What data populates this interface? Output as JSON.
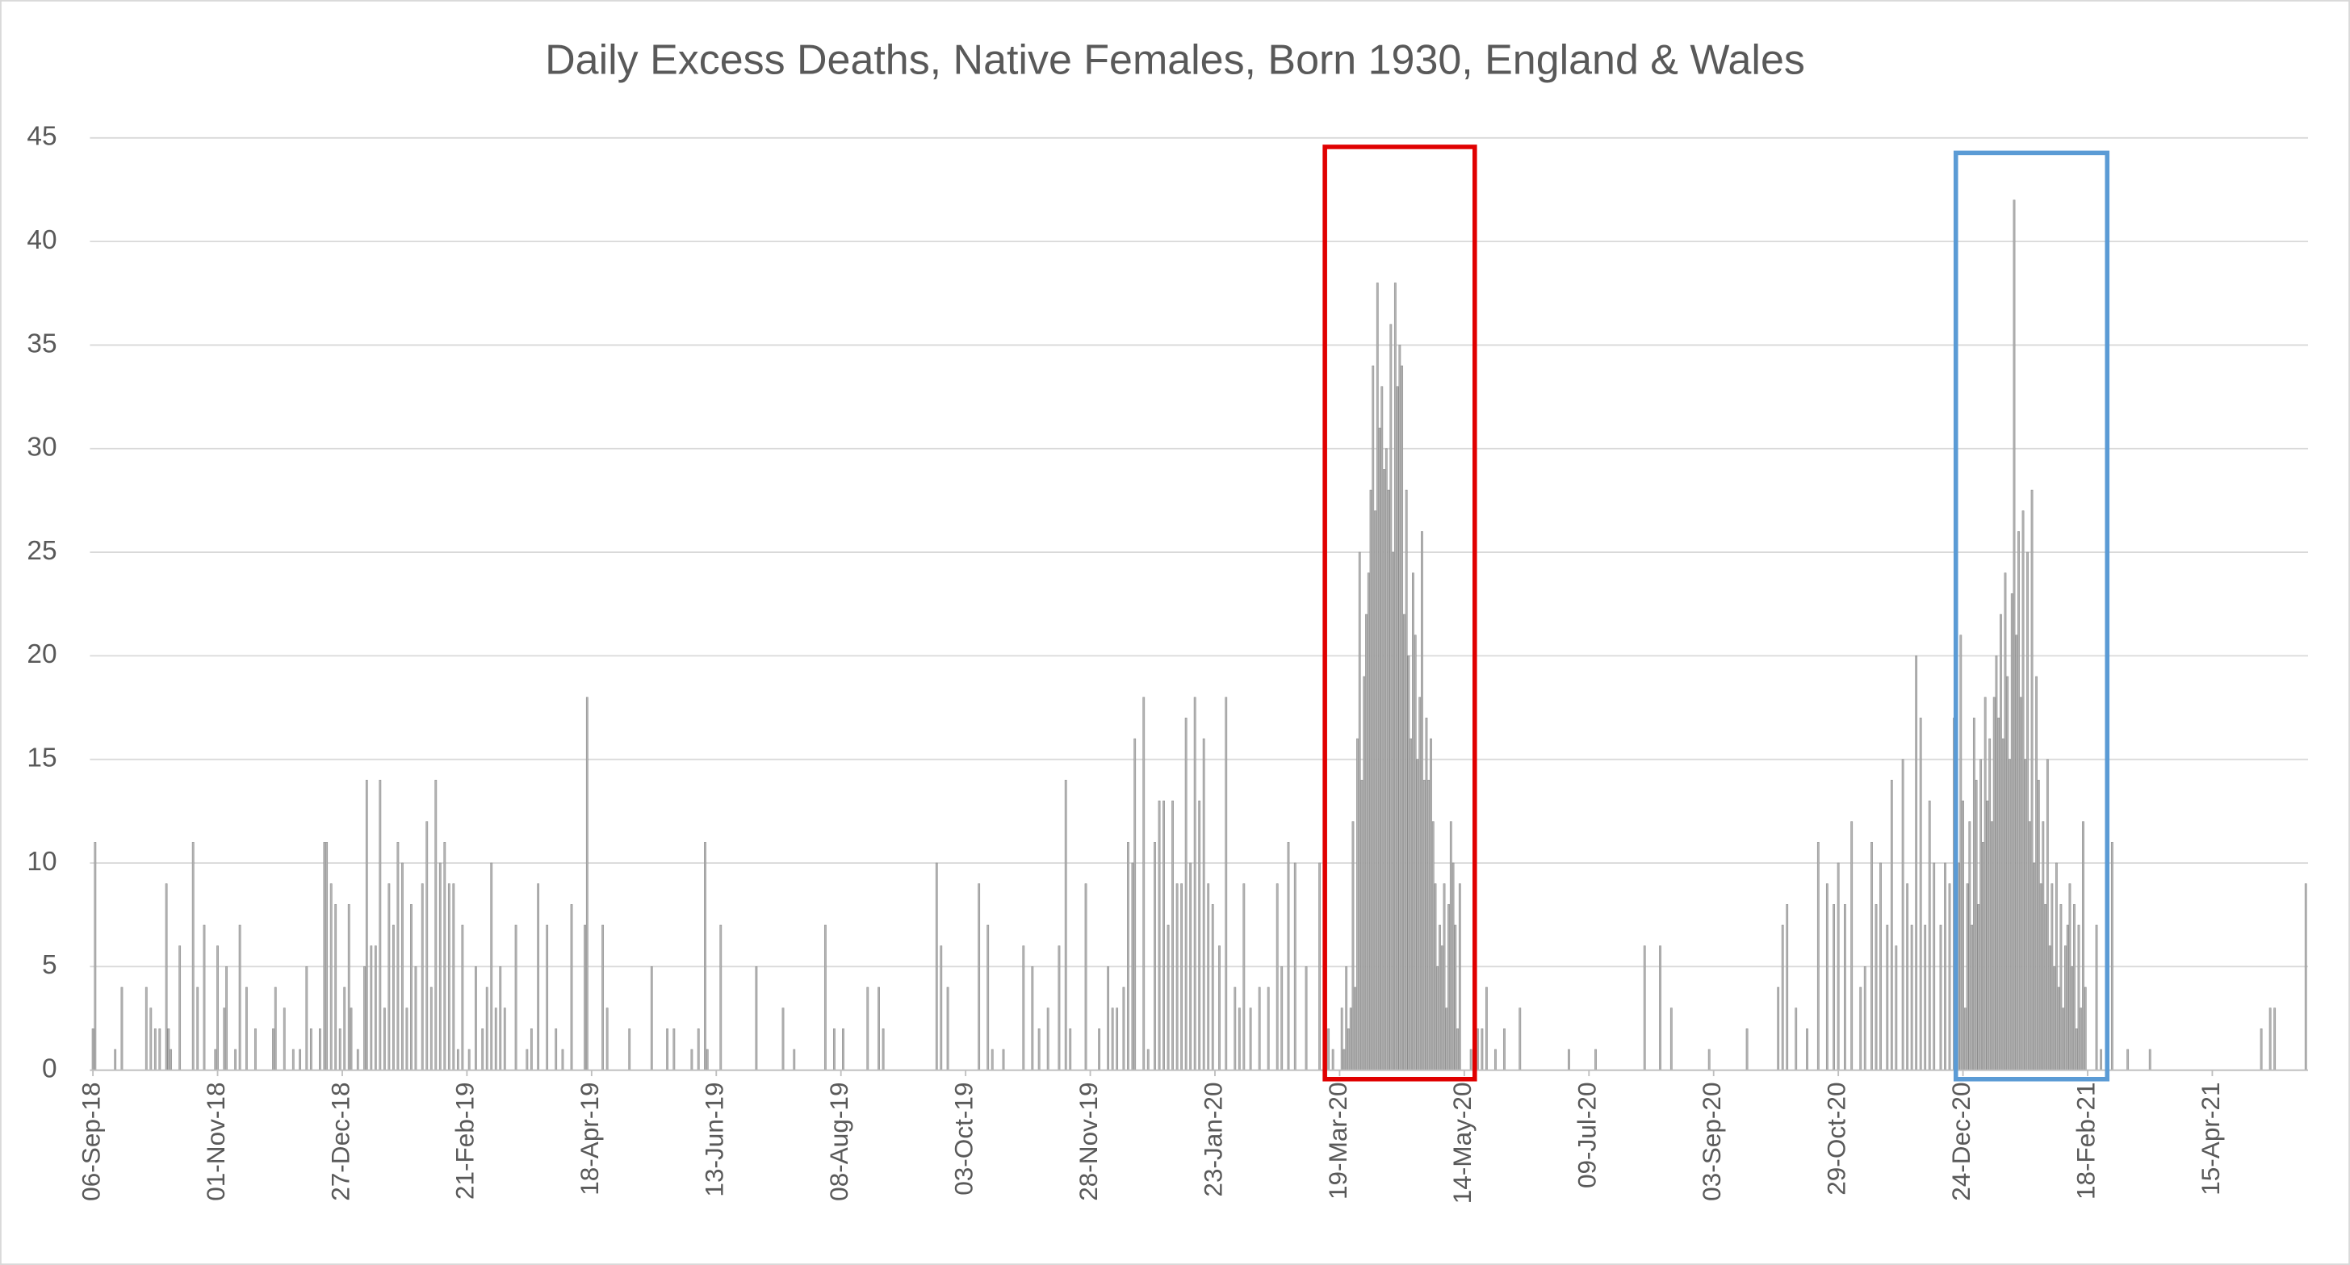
{
  "chart_data": {
    "type": "bar",
    "title": "Daily Excess Deaths, Native Females, Born 1930, England & Wales",
    "color": "#b3b3b3",
    "grid": true,
    "ylim": [
      0,
      45
    ],
    "yticks": [
      0,
      5,
      10,
      15,
      20,
      25,
      30,
      35,
      40,
      45
    ],
    "xlim": [
      "2018-09-06",
      "2021-05-28"
    ],
    "xticks": [
      {
        "value": "2018-09-06",
        "label": "06-Sep-18"
      },
      {
        "value": "2018-11-01",
        "label": "01-Nov-18"
      },
      {
        "value": "2018-12-27",
        "label": "27-Dec-18"
      },
      {
        "value": "2019-02-21",
        "label": "21-Feb-19"
      },
      {
        "value": "2019-04-18",
        "label": "18-Apr-19"
      },
      {
        "value": "2019-06-13",
        "label": "13-Jun-19"
      },
      {
        "value": "2019-08-08",
        "label": "08-Aug-19"
      },
      {
        "value": "2019-10-03",
        "label": "03-Oct-19"
      },
      {
        "value": "2019-11-28",
        "label": "28-Nov-19"
      },
      {
        "value": "2020-01-23",
        "label": "23-Jan-20"
      },
      {
        "value": "2020-03-19",
        "label": "19-Mar-20"
      },
      {
        "value": "2020-05-14",
        "label": "14-May-20"
      },
      {
        "value": "2020-07-09",
        "label": "09-Jul-20"
      },
      {
        "value": "2020-09-03",
        "label": "03-Sep-20"
      },
      {
        "value": "2020-10-29",
        "label": "29-Oct-20"
      },
      {
        "value": "2020-12-24",
        "label": "24-Dec-20"
      },
      {
        "value": "2021-02-18",
        "label": "18-Feb-21"
      },
      {
        "value": "2021-04-15",
        "label": "15-Apr-21"
      }
    ],
    "x": [
      "2018-09-06",
      "2018-09-07",
      "2018-09-16",
      "2018-09-19",
      "2018-09-30",
      "2018-10-02",
      "2018-10-04",
      "2018-10-06",
      "2018-10-09",
      "2018-10-10",
      "2018-10-11",
      "2018-10-15",
      "2018-10-21",
      "2018-10-23",
      "2018-10-26",
      "2018-10-31",
      "2018-11-01",
      "2018-11-04",
      "2018-11-05",
      "2018-11-09",
      "2018-11-11",
      "2018-11-14",
      "2018-11-18",
      "2018-11-26",
      "2018-11-27",
      "2018-12-01",
      "2018-12-05",
      "2018-12-08",
      "2018-12-11",
      "2018-12-13",
      "2018-12-17",
      "2018-12-19",
      "2018-12-20",
      "2018-12-22",
      "2018-12-24",
      "2018-12-26",
      "2018-12-28",
      "2018-12-30",
      "2018-12-31",
      "2019-01-03",
      "2019-01-06",
      "2019-01-07",
      "2019-01-09",
      "2019-01-11",
      "2019-01-13",
      "2019-01-15",
      "2019-01-17",
      "2019-01-19",
      "2019-01-21",
      "2019-01-23",
      "2019-01-25",
      "2019-01-27",
      "2019-01-29",
      "2019-02-01",
      "2019-02-03",
      "2019-02-05",
      "2019-02-07",
      "2019-02-09",
      "2019-02-11",
      "2019-02-13",
      "2019-02-15",
      "2019-02-17",
      "2019-02-19",
      "2019-02-22",
      "2019-02-25",
      "2019-02-28",
      "2019-03-02",
      "2019-03-04",
      "2019-03-06",
      "2019-03-08",
      "2019-03-10",
      "2019-03-15",
      "2019-03-20",
      "2019-03-22",
      "2019-03-25",
      "2019-03-29",
      "2019-04-02",
      "2019-04-05",
      "2019-04-09",
      "2019-04-15",
      "2019-04-16",
      "2019-04-23",
      "2019-04-25",
      "2019-05-05",
      "2019-05-15",
      "2019-05-22",
      "2019-05-25",
      "2019-06-02",
      "2019-06-05",
      "2019-06-08",
      "2019-06-09",
      "2019-06-15",
      "2019-07-01",
      "2019-07-13",
      "2019-07-18",
      "2019-08-01",
      "2019-08-05",
      "2019-08-09",
      "2019-08-20",
      "2019-08-25",
      "2019-08-27",
      "2019-09-20",
      "2019-09-22",
      "2019-09-25",
      "2019-10-09",
      "2019-10-13",
      "2019-10-15",
      "2019-10-20",
      "2019-10-29",
      "2019-11-02",
      "2019-11-05",
      "2019-11-09",
      "2019-11-14",
      "2019-11-17",
      "2019-11-19",
      "2019-11-26",
      "2019-12-02",
      "2019-12-06",
      "2019-12-08",
      "2019-12-10",
      "2019-12-13",
      "2019-12-15",
      "2019-12-17",
      "2019-12-18",
      "2019-12-22",
      "2019-12-24",
      "2019-12-27",
      "2019-12-29",
      "2019-12-31",
      "2020-01-02",
      "2020-01-04",
      "2020-01-06",
      "2020-01-08",
      "2020-01-10",
      "2020-01-12",
      "2020-01-14",
      "2020-01-16",
      "2020-01-18",
      "2020-01-20",
      "2020-01-22",
      "2020-01-25",
      "2020-01-28",
      "2020-02-01",
      "2020-02-03",
      "2020-02-05",
      "2020-02-08",
      "2020-02-12",
      "2020-02-16",
      "2020-02-20",
      "2020-02-22",
      "2020-02-25",
      "2020-02-28",
      "2020-03-04",
      "2020-03-10",
      "2020-03-14",
      "2020-03-16",
      "2020-03-20",
      "2020-03-21",
      "2020-03-22",
      "2020-03-23",
      "2020-03-24",
      "2020-03-25",
      "2020-03-26",
      "2020-03-27",
      "2020-03-28",
      "2020-03-29",
      "2020-03-30",
      "2020-03-31",
      "2020-04-01",
      "2020-04-02",
      "2020-04-03",
      "2020-04-04",
      "2020-04-05",
      "2020-04-06",
      "2020-04-07",
      "2020-04-08",
      "2020-04-09",
      "2020-04-10",
      "2020-04-11",
      "2020-04-12",
      "2020-04-13",
      "2020-04-14",
      "2020-04-15",
      "2020-04-16",
      "2020-04-17",
      "2020-04-18",
      "2020-04-19",
      "2020-04-20",
      "2020-04-21",
      "2020-04-22",
      "2020-04-23",
      "2020-04-24",
      "2020-04-25",
      "2020-04-26",
      "2020-04-27",
      "2020-04-28",
      "2020-04-29",
      "2020-04-30",
      "2020-05-01",
      "2020-05-02",
      "2020-05-03",
      "2020-05-04",
      "2020-05-05",
      "2020-05-06",
      "2020-05-07",
      "2020-05-08",
      "2020-05-09",
      "2020-05-10",
      "2020-05-11",
      "2020-05-12",
      "2020-05-17",
      "2020-05-20",
      "2020-05-22",
      "2020-05-24",
      "2020-05-28",
      "2020-06-01",
      "2020-06-08",
      "2020-06-30",
      "2020-07-12",
      "2020-08-03",
      "2020-08-10",
      "2020-08-15",
      "2020-09-01",
      "2020-09-18",
      "2020-10-02",
      "2020-10-04",
      "2020-10-06",
      "2020-10-10",
      "2020-10-15",
      "2020-10-20",
      "2020-10-24",
      "2020-10-27",
      "2020-10-29",
      "2020-11-01",
      "2020-11-04",
      "2020-11-08",
      "2020-11-10",
      "2020-11-13",
      "2020-11-15",
      "2020-11-17",
      "2020-11-20",
      "2020-11-22",
      "2020-11-24",
      "2020-11-27",
      "2020-11-29",
      "2020-12-01",
      "2020-12-03",
      "2020-12-05",
      "2020-12-07",
      "2020-12-09",
      "2020-12-11",
      "2020-12-14",
      "2020-12-16",
      "2020-12-18",
      "2020-12-20",
      "2020-12-22",
      "2020-12-23",
      "2020-12-24",
      "2020-12-25",
      "2020-12-26",
      "2020-12-27",
      "2020-12-28",
      "2020-12-29",
      "2020-12-30",
      "2020-12-31",
      "2021-01-01",
      "2021-01-02",
      "2021-01-03",
      "2021-01-04",
      "2021-01-05",
      "2021-01-06",
      "2021-01-07",
      "2021-01-08",
      "2021-01-09",
      "2021-01-10",
      "2021-01-11",
      "2021-01-12",
      "2021-01-13",
      "2021-01-14",
      "2021-01-15",
      "2021-01-16",
      "2021-01-17",
      "2021-01-18",
      "2021-01-19",
      "2021-01-20",
      "2021-01-21",
      "2021-01-22",
      "2021-01-23",
      "2021-01-24",
      "2021-01-25",
      "2021-01-26",
      "2021-01-27",
      "2021-01-28",
      "2021-01-29",
      "2021-01-30",
      "2021-01-31",
      "2021-02-01",
      "2021-02-02",
      "2021-02-03",
      "2021-02-04",
      "2021-02-05",
      "2021-02-06",
      "2021-02-07",
      "2021-02-08",
      "2021-02-09",
      "2021-02-10",
      "2021-02-11",
      "2021-02-12",
      "2021-02-13",
      "2021-02-14",
      "2021-02-15",
      "2021-02-16",
      "2021-02-17",
      "2021-02-22",
      "2021-02-24",
      "2021-03-01",
      "2021-03-08",
      "2021-03-18",
      "2021-05-07",
      "2021-05-11",
      "2021-05-13",
      "2021-05-27"
    ],
    "values": [
      2,
      11,
      1,
      4,
      4,
      3,
      2,
      2,
      9,
      2,
      1,
      6,
      11,
      4,
      7,
      1,
      6,
      3,
      5,
      1,
      7,
      4,
      2,
      2,
      4,
      3,
      1,
      1,
      5,
      2,
      2,
      11,
      11,
      9,
      8,
      2,
      4,
      8,
      3,
      1,
      5,
      14,
      6,
      6,
      14,
      3,
      9,
      7,
      11,
      10,
      3,
      8,
      5,
      9,
      12,
      4,
      14,
      10,
      11,
      9,
      9,
      1,
      7,
      1,
      5,
      2,
      4,
      10,
      3,
      5,
      3,
      7,
      1,
      2,
      9,
      7,
      2,
      1,
      8,
      7,
      18,
      7,
      3,
      2,
      5,
      2,
      2,
      1,
      2,
      11,
      1,
      7,
      5,
      3,
      1,
      7,
      2,
      2,
      4,
      4,
      2,
      10,
      6,
      4,
      9,
      7,
      1,
      1,
      6,
      5,
      2,
      3,
      6,
      14,
      2,
      9,
      2,
      5,
      3,
      3,
      4,
      11,
      10,
      16,
      18,
      1,
      11,
      13,
      13,
      7,
      13,
      9,
      9,
      17,
      10,
      18,
      13,
      16,
      9,
      8,
      6,
      18,
      4,
      3,
      9,
      3,
      4,
      4,
      9,
      5,
      11,
      10,
      5,
      10,
      2,
      1,
      3,
      1,
      5,
      2,
      3,
      12,
      4,
      16,
      25,
      14,
      19,
      22,
      24,
      28,
      34,
      27,
      38,
      31,
      33,
      29,
      30,
      28,
      36,
      25,
      38,
      33,
      35,
      34,
      22,
      28,
      20,
      16,
      24,
      21,
      15,
      18,
      26,
      14,
      17,
      14,
      16,
      12,
      9,
      5,
      7,
      6,
      9,
      3,
      8,
      12,
      10,
      7,
      2,
      9,
      1,
      2,
      2,
      4,
      1,
      2,
      3,
      1,
      1,
      6,
      6,
      3,
      1,
      2,
      4,
      7,
      8,
      3,
      2,
      11,
      9,
      8,
      10,
      8,
      12,
      4,
      5,
      11,
      8,
      10,
      7,
      14,
      6,
      15,
      9,
      7,
      20,
      17,
      7,
      13,
      10,
      7,
      10,
      9,
      17,
      10,
      21,
      13,
      3,
      9,
      12,
      7,
      17,
      14,
      8,
      15,
      11,
      18,
      13,
      16,
      12,
      18,
      20,
      17,
      22,
      16,
      24,
      19,
      15,
      23,
      42,
      21,
      26,
      18,
      27,
      15,
      25,
      12,
      28,
      10,
      19,
      14,
      9,
      12,
      8,
      15,
      6,
      9,
      5,
      10,
      4,
      8,
      3,
      6,
      7,
      9,
      5,
      8,
      2,
      7,
      3,
      12,
      4,
      7,
      1,
      11,
      1,
      1,
      2,
      3,
      3,
      9
    ]
  }
}
